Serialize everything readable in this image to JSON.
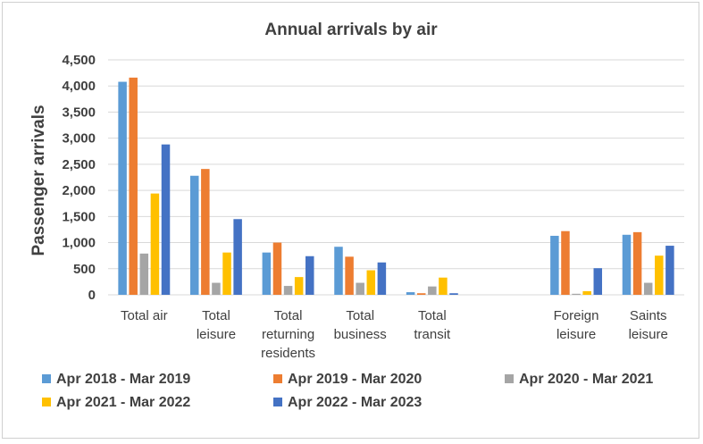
{
  "chart_data": {
    "type": "bar",
    "title": "Annual arrivals by air",
    "ylabel": "Passenger arrivals",
    "xlabel": "",
    "ylim": [
      0,
      4500
    ],
    "yticks": [
      0,
      500,
      1000,
      1500,
      2000,
      2500,
      3000,
      3500,
      4000,
      4500
    ],
    "yticklabels": [
      "0",
      "500",
      "1,000",
      "1,500",
      "2,000",
      "2,500",
      "3,000",
      "3,500",
      "4,000",
      "4,500"
    ],
    "grid": true,
    "legend_position": "bottom",
    "categories": [
      [
        "Total air"
      ],
      [
        "Total",
        "leisure"
      ],
      [
        "Total",
        "returning",
        "residents"
      ],
      [
        "Total",
        "business"
      ],
      [
        "Total",
        "transit"
      ],
      [],
      [
        "Foreign",
        "leisure"
      ],
      [
        "Saints",
        "leisure"
      ]
    ],
    "series": [
      {
        "name": "Apr 2018 - Mar 2019",
        "color": "#5B9BD5",
        "values": [
          4080,
          2280,
          810,
          920,
          50,
          null,
          1130,
          1150
        ]
      },
      {
        "name": "Apr 2019 - Mar 2020",
        "color": "#ED7D31",
        "values": [
          4160,
          2410,
          1000,
          730,
          30,
          null,
          1220,
          1200
        ]
      },
      {
        "name": "Apr 2020 - Mar 2021",
        "color": "#A5A5A5",
        "values": [
          790,
          230,
          170,
          230,
          160,
          null,
          20,
          230
        ]
      },
      {
        "name": "Apr 2021 - Mar 2022",
        "color": "#FFC000",
        "values": [
          1940,
          810,
          340,
          470,
          330,
          null,
          70,
          750
        ]
      },
      {
        "name": "Apr 2022 - Mar 2023",
        "color": "#4472C4",
        "values": [
          2880,
          1450,
          740,
          620,
          30,
          null,
          510,
          940
        ]
      }
    ]
  }
}
